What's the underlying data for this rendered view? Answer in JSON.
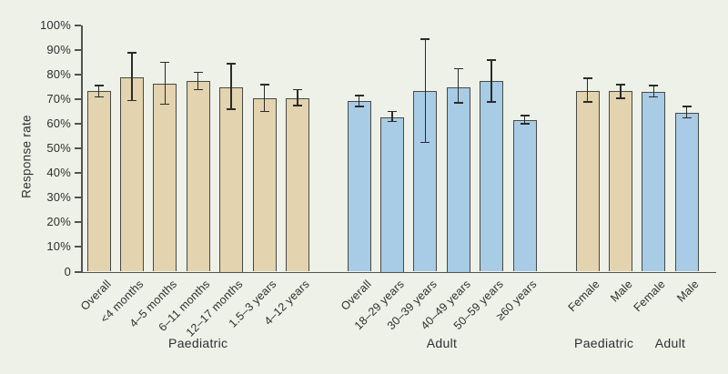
{
  "colors": {
    "background": "#edf1e8",
    "paediatric": "#e3d3ae",
    "adult": "#a8cbe6",
    "bar_border": "#464a44",
    "axis": "#50544e",
    "error_bar": "#2b2b2b",
    "text": "#2f2f2f"
  },
  "chart_data": {
    "type": "bar",
    "title": "",
    "xlabel": "",
    "ylabel": "Response rate",
    "ylim": [
      0,
      100
    ],
    "grid": false,
    "legend": "none",
    "error_bars": true,
    "y_ticks": [
      {
        "label": "100%",
        "value": 100
      },
      {
        "label": "90%",
        "value": 90
      },
      {
        "label": "80%",
        "value": 80
      },
      {
        "label": "70%",
        "value": 70
      },
      {
        "label": "60%",
        "value": 60
      },
      {
        "label": "50%",
        "value": 50
      },
      {
        "label": "40%",
        "value": 40
      },
      {
        "label": "30%",
        "value": 30
      },
      {
        "label": "20%",
        "value": 20
      },
      {
        "label": "10%",
        "value": 10
      },
      {
        "label": "0",
        "value": 0
      }
    ],
    "groups": [
      {
        "label": "Paediatric",
        "color_key": "paediatric",
        "bars": [
          {
            "label": "Overall",
            "value": 73.5,
            "err_low": 71,
            "err_high": 75.5
          },
          {
            "label": "<4 months",
            "value": 79,
            "err_low": 69.5,
            "err_high": 89
          },
          {
            "label": "4–5 months",
            "value": 76.5,
            "err_low": 68,
            "err_high": 85
          },
          {
            "label": "6–11 months",
            "value": 77.5,
            "err_low": 74,
            "err_high": 81
          },
          {
            "label": "12–17 months",
            "value": 75,
            "err_low": 66,
            "err_high": 84.5
          },
          {
            "label": "1.5–3 years",
            "value": 70.5,
            "err_low": 65,
            "err_high": 76
          },
          {
            "label": "4–12 years",
            "value": 70.5,
            "err_low": 67.5,
            "err_high": 74
          }
        ]
      },
      {
        "label": "Adult",
        "color_key": "adult",
        "bars": [
          {
            "label": "Overall",
            "value": 69.5,
            "err_low": 67,
            "err_high": 71.5
          },
          {
            "label": "18–29 years",
            "value": 62.5,
            "err_low": 61,
            "err_high": 65
          },
          {
            "label": "30–39 years",
            "value": 73.5,
            "err_low": 52.5,
            "err_high": 94.5
          },
          {
            "label": "40–49 years",
            "value": 75,
            "err_low": 68.5,
            "err_high": 82.5
          },
          {
            "label": "50–59 years",
            "value": 77.5,
            "err_low": 69,
            "err_high": 86
          },
          {
            "label": "≥60 years",
            "value": 61.5,
            "err_low": 60,
            "err_high": 63.5
          }
        ]
      },
      {
        "label": "Paediatric",
        "color_key": "paediatric",
        "bars": [
          {
            "label": "Female",
            "value": 73.5,
            "err_low": 69,
            "err_high": 78.5
          },
          {
            "label": "Male",
            "value": 73.5,
            "err_low": 70.5,
            "err_high": 76
          }
        ]
      },
      {
        "label": "Adult",
        "color_key": "adult",
        "bars": [
          {
            "label": "Female",
            "value": 73,
            "err_low": 71,
            "err_high": 75.5
          },
          {
            "label": "Male",
            "value": 64.5,
            "err_low": 62.5,
            "err_high": 67
          }
        ]
      }
    ]
  }
}
